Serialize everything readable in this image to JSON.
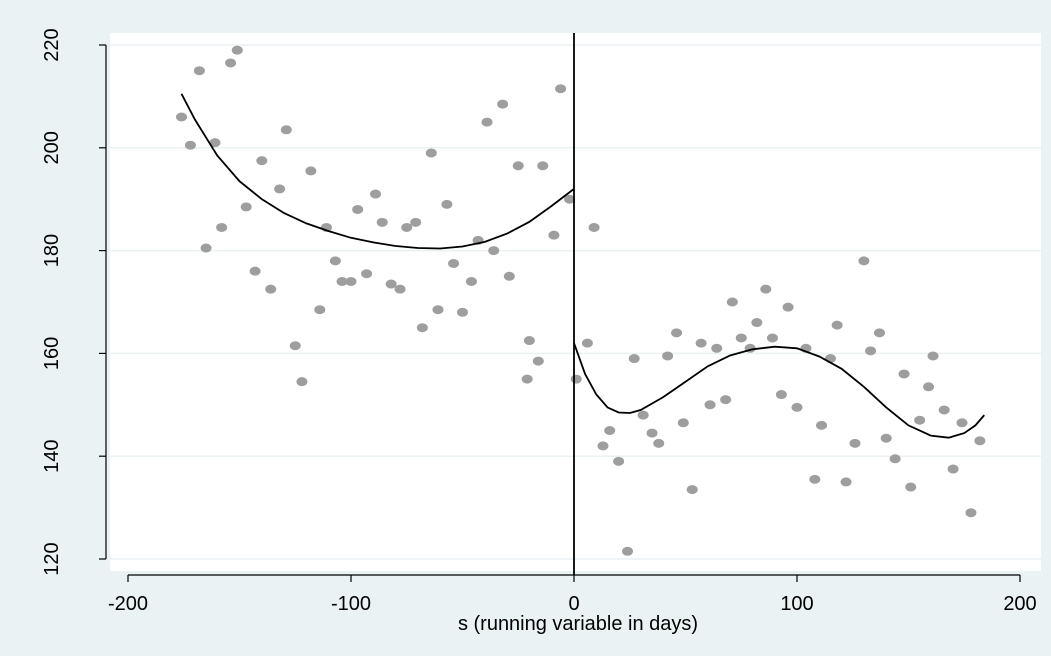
{
  "chart_data": {
    "type": "scatter",
    "title": "",
    "xlabel": "s (running variable in days)",
    "ylabel": "",
    "xlim": [
      -200,
      200
    ],
    "ylim": [
      120,
      220
    ],
    "x_ticks": [
      -200,
      -100,
      0,
      100,
      200
    ],
    "y_ticks": [
      120,
      140,
      160,
      180,
      200,
      220
    ],
    "grid": "horizontal",
    "legend": "none",
    "cutoff_x": 0,
    "colors": {
      "outer_background": "#eaf2f3",
      "plot_background": "#ffffff",
      "gridline": "#eaf2f3",
      "points": "#9e9e9e",
      "fit_line": "#000000",
      "cutoff_line": "#000000"
    },
    "series": [
      {
        "type": "scatter",
        "points": [
          [
            -176,
            206
          ],
          [
            -172,
            200.5
          ],
          [
            -168,
            215
          ],
          [
            -165,
            180.5
          ],
          [
            -161,
            201
          ],
          [
            -158,
            184.5
          ],
          [
            -154,
            216.5
          ],
          [
            -151,
            219
          ],
          [
            -147,
            188.5
          ],
          [
            -143,
            176
          ],
          [
            -140,
            197.5
          ],
          [
            -136,
            172.5
          ],
          [
            -132,
            192
          ],
          [
            -129,
            203.5
          ],
          [
            -125,
            161.5
          ],
          [
            -122,
            154.5
          ],
          [
            -118,
            195.5
          ],
          [
            -114,
            168.5
          ],
          [
            -111,
            184.5
          ],
          [
            -107,
            178
          ],
          [
            -104,
            174
          ],
          [
            -100,
            174
          ],
          [
            -97,
            188
          ],
          [
            -93,
            175.5
          ],
          [
            -89,
            191
          ],
          [
            -86,
            185.5
          ],
          [
            -82,
            173.5
          ],
          [
            -78,
            172.5
          ],
          [
            -75,
            184.5
          ],
          [
            -71,
            185.5
          ],
          [
            -68,
            165
          ],
          [
            -64,
            199
          ],
          [
            -61,
            168.5
          ],
          [
            -57,
            189
          ],
          [
            -54,
            177.5
          ],
          [
            -50,
            168
          ],
          [
            -46,
            174
          ],
          [
            -43,
            182
          ],
          [
            -39,
            205
          ],
          [
            -36,
            180
          ],
          [
            -32,
            208.5
          ],
          [
            -29,
            175
          ],
          [
            -25,
            196.5
          ],
          [
            -21,
            155
          ],
          [
            -20,
            162.5
          ],
          [
            -16,
            158.5
          ],
          [
            -14,
            196.5
          ],
          [
            -9,
            183
          ],
          [
            -6,
            211.5
          ],
          [
            -2,
            190
          ],
          [
            1,
            155
          ],
          [
            6,
            162
          ],
          [
            9,
            184.5
          ],
          [
            13,
            142
          ],
          [
            16,
            145
          ],
          [
            20,
            139
          ],
          [
            24,
            121.5
          ],
          [
            27,
            159
          ],
          [
            31,
            148
          ],
          [
            35,
            144.5
          ],
          [
            38,
            142.5
          ],
          [
            42,
            159.5
          ],
          [
            46,
            164
          ],
          [
            49,
            146.5
          ],
          [
            53,
            133.5
          ],
          [
            57,
            162
          ],
          [
            61,
            150
          ],
          [
            64,
            161
          ],
          [
            68,
            151
          ],
          [
            71,
            170
          ],
          [
            75,
            163
          ],
          [
            79,
            161
          ],
          [
            82,
            166
          ],
          [
            86,
            172.5
          ],
          [
            89,
            163
          ],
          [
            93,
            152
          ],
          [
            96,
            169
          ],
          [
            100,
            149.5
          ],
          [
            104,
            161
          ],
          [
            108,
            135.5
          ],
          [
            111,
            146
          ],
          [
            115,
            159
          ],
          [
            118,
            165.5
          ],
          [
            122,
            135
          ],
          [
            126,
            142.5
          ],
          [
            130,
            178
          ],
          [
            133,
            160.5
          ],
          [
            137,
            164
          ],
          [
            140,
            143.5
          ],
          [
            144,
            139.5
          ],
          [
            148,
            156
          ],
          [
            151,
            134
          ],
          [
            155,
            147
          ],
          [
            159,
            153.5
          ],
          [
            161,
            159.5
          ],
          [
            166,
            149
          ],
          [
            170,
            137.5
          ],
          [
            174,
            146.5
          ],
          [
            178,
            129
          ],
          [
            182,
            143
          ]
        ]
      },
      {
        "type": "line",
        "name": "",
        "points": [
          [
            -176,
            210.5
          ],
          [
            -170,
            205.5
          ],
          [
            -160,
            198.5
          ],
          [
            -150,
            193.5
          ],
          [
            -140,
            190
          ],
          [
            -130,
            187.3
          ],
          [
            -120,
            185.3
          ],
          [
            -110,
            183.8
          ],
          [
            -100,
            182.5
          ],
          [
            -90,
            181.6
          ],
          [
            -80,
            180.9
          ],
          [
            -70,
            180.5
          ],
          [
            -60,
            180.4
          ],
          [
            -50,
            180.8
          ],
          [
            -40,
            181.7
          ],
          [
            -30,
            183.3
          ],
          [
            -20,
            185.6
          ],
          [
            -10,
            188.7
          ],
          [
            0,
            192
          ]
        ]
      },
      {
        "type": "line",
        "name": "",
        "points": [
          [
            0,
            162
          ],
          [
            5,
            156
          ],
          [
            10,
            152
          ],
          [
            15,
            149.5
          ],
          [
            20,
            148.5
          ],
          [
            25,
            148.4
          ],
          [
            30,
            149
          ],
          [
            40,
            151.5
          ],
          [
            50,
            154.5
          ],
          [
            60,
            157.5
          ],
          [
            70,
            159.6
          ],
          [
            80,
            160.8
          ],
          [
            90,
            161.3
          ],
          [
            100,
            161
          ],
          [
            110,
            159.4
          ],
          [
            120,
            157
          ],
          [
            130,
            153.5
          ],
          [
            140,
            149.5
          ],
          [
            150,
            146
          ],
          [
            160,
            144
          ],
          [
            168,
            143.6
          ],
          [
            175,
            144.5
          ],
          [
            180,
            146
          ],
          [
            184,
            148
          ]
        ]
      }
    ]
  }
}
